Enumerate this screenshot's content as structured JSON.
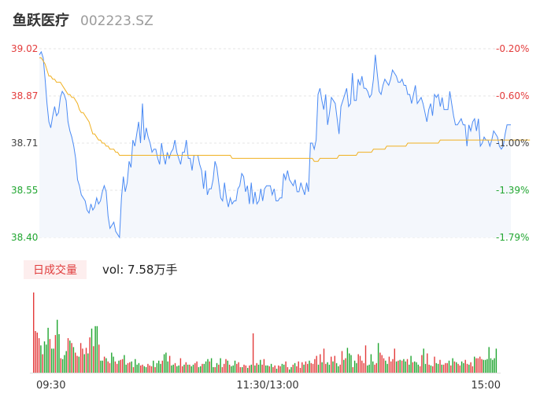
{
  "header": {
    "name": "鱼跃医疗",
    "code": "002223.SZ"
  },
  "volume_header": {
    "badge": "日成交量",
    "text": "vol: 7.58万手"
  },
  "colors": {
    "price_line": "#4a8af4",
    "avg_line": "#f0b020",
    "up": "#e33b3b",
    "down": "#21a631",
    "fill": "#f4f7fc",
    "grid": "#e6e6e6"
  },
  "chart_data": [
    {
      "type": "line",
      "title": "",
      "y_ticks_left": [
        "39.02",
        "38.87",
        "38.71",
        "38.55",
        "38.40"
      ],
      "y_ticks_right": [
        "-0.20%",
        "-0.60%",
        "-1.00%",
        "-1.39%",
        "-1.79%"
      ],
      "ylim": [
        38.4,
        39.02
      ],
      "xlim": [
        0,
        240
      ],
      "x_ticks": [
        "09:30",
        "11:30/13:00",
        "15:00"
      ],
      "series": [
        {
          "key": "price",
          "values": [
            39.0,
            39.01,
            38.99,
            38.92,
            38.84,
            38.78,
            38.76,
            38.8,
            38.83,
            38.8,
            38.81,
            38.86,
            38.88,
            38.87,
            38.85,
            38.78,
            38.75,
            38.73,
            38.7,
            38.66,
            38.59,
            38.57,
            38.54,
            38.53,
            38.52,
            38.49,
            38.48,
            38.51,
            38.49,
            38.5,
            38.53,
            38.51,
            38.52,
            38.55,
            38.57,
            38.55,
            38.47,
            38.43,
            38.44,
            38.45,
            38.42,
            38.41,
            38.4,
            38.53,
            38.6,
            38.55,
            38.58,
            38.65,
            38.63,
            38.72,
            38.7,
            38.74,
            38.78,
            38.71,
            38.84,
            38.72,
            38.76,
            38.73,
            38.71,
            38.68,
            38.69,
            38.69,
            38.66,
            38.64,
            38.71,
            38.67,
            38.64,
            38.68,
            38.66,
            38.68,
            38.69,
            38.72,
            38.68,
            38.66,
            38.64,
            38.68,
            38.68,
            38.72,
            38.66,
            38.66,
            38.62,
            38.67,
            38.67,
            38.67,
            38.64,
            38.62,
            38.56,
            38.62,
            38.54,
            38.56,
            38.56,
            38.59,
            38.65,
            38.63,
            38.58,
            38.53,
            38.52,
            38.58,
            38.53,
            38.5,
            38.53,
            38.51,
            38.52,
            38.52,
            38.56,
            38.57,
            38.61,
            38.6,
            38.55,
            38.57,
            38.51,
            38.58,
            38.51,
            38.55,
            38.51,
            38.52,
            38.56,
            38.52,
            38.56,
            38.57,
            38.57,
            38.57,
            38.54,
            38.56,
            38.52,
            38.52,
            38.53,
            38.53,
            38.61,
            38.59,
            38.62,
            38.59,
            38.58,
            38.57,
            38.59,
            38.55,
            38.55,
            38.58,
            38.56,
            38.54,
            38.58,
            38.55,
            38.71,
            38.71,
            38.69,
            38.72,
            38.87,
            38.89,
            38.85,
            38.82,
            38.87,
            38.77,
            38.81,
            38.86,
            38.85,
            38.84,
            38.79,
            38.74,
            38.83,
            38.85,
            38.87,
            38.89,
            38.83,
            38.84,
            38.94,
            38.85,
            38.85,
            38.92,
            38.9,
            38.93,
            38.89,
            38.89,
            38.88,
            38.86,
            38.87,
            38.92,
            39.0,
            38.94,
            38.88,
            38.87,
            38.9,
            38.92,
            38.91,
            38.9,
            38.92,
            38.95,
            38.94,
            38.93,
            38.91,
            38.91,
            38.92,
            38.9,
            38.9,
            38.87,
            38.87,
            38.84,
            38.87,
            38.9,
            38.84,
            38.85,
            38.86,
            38.84,
            38.81,
            38.78,
            38.82,
            38.84,
            38.8,
            38.87,
            38.86,
            38.87,
            38.83,
            38.86,
            38.82,
            38.82,
            38.82,
            38.88,
            38.84,
            38.8,
            38.77,
            38.77,
            38.78,
            38.79,
            38.77,
            38.77,
            38.7,
            38.77,
            38.75,
            38.78,
            38.79,
            38.75,
            38.79,
            38.7,
            38.71,
            38.73,
            38.72,
            38.72,
            38.7,
            38.72,
            38.75,
            38.74,
            38.73,
            38.7,
            38.69,
            38.7,
            38.74,
            38.77,
            38.77,
            38.77
          ]
        },
        {
          "key": "average",
          "values": [
            38.99,
            38.99,
            38.98,
            38.97,
            38.95,
            38.93,
            38.93,
            38.92,
            38.92,
            38.91,
            38.91,
            38.91,
            38.9,
            38.89,
            38.88,
            38.87,
            38.87,
            38.86,
            38.86,
            38.85,
            38.84,
            38.82,
            38.81,
            38.81,
            38.8,
            38.79,
            38.78,
            38.76,
            38.74,
            38.74,
            38.73,
            38.72,
            38.72,
            38.71,
            38.71,
            38.7,
            38.7,
            38.69,
            38.69,
            38.69,
            38.68,
            38.68,
            38.67,
            38.67,
            38.67,
            38.67,
            38.67,
            38.67,
            38.67,
            38.67,
            38.67,
            38.67,
            38.67,
            38.67,
            38.67,
            38.67,
            38.67,
            38.67,
            38.67,
            38.67,
            38.67,
            38.67,
            38.67,
            38.67,
            38.67,
            38.67,
            38.67,
            38.67,
            38.67,
            38.67,
            38.67,
            38.67,
            38.67,
            38.67,
            38.67,
            38.67,
            38.67,
            38.67,
            38.67,
            38.67,
            38.67,
            38.67,
            38.67,
            38.67,
            38.67,
            38.67,
            38.67,
            38.67,
            38.67,
            38.67,
            38.67,
            38.67,
            38.67,
            38.67,
            38.67,
            38.67,
            38.67,
            38.67,
            38.67,
            38.67,
            38.67,
            38.66,
            38.66,
            38.66,
            38.66,
            38.66,
            38.66,
            38.66,
            38.66,
            38.66,
            38.66,
            38.66,
            38.66,
            38.66,
            38.66,
            38.66,
            38.66,
            38.66,
            38.66,
            38.66,
            38.66,
            38.66,
            38.66,
            38.66,
            38.66,
            38.66,
            38.66,
            38.66,
            38.66,
            38.66,
            38.66,
            38.66,
            38.66,
            38.66,
            38.66,
            38.66,
            38.66,
            38.66,
            38.66,
            38.66,
            38.66,
            38.66,
            38.66,
            38.66,
            38.65,
            38.65,
            38.65,
            38.66,
            38.66,
            38.66,
            38.66,
            38.66,
            38.66,
            38.66,
            38.66,
            38.66,
            38.66,
            38.67,
            38.67,
            38.67,
            38.67,
            38.67,
            38.67,
            38.67,
            38.67,
            38.67,
            38.67,
            38.68,
            38.68,
            38.68,
            38.68,
            38.68,
            38.68,
            38.68,
            38.68,
            38.69,
            38.69,
            38.69,
            38.69,
            38.69,
            38.69,
            38.69,
            38.7,
            38.7,
            38.7,
            38.7,
            38.7,
            38.7,
            38.7,
            38.7,
            38.7,
            38.7,
            38.7,
            38.71,
            38.71,
            38.71,
            38.71,
            38.71,
            38.71,
            38.71,
            38.71,
            38.71,
            38.71,
            38.71,
            38.71,
            38.71,
            38.71,
            38.71,
            38.71,
            38.71,
            38.72,
            38.72,
            38.72,
            38.72,
            38.72,
            38.72,
            38.72,
            38.72,
            38.72,
            38.72,
            38.72,
            38.72,
            38.72,
            38.72,
            38.72,
            38.72,
            38.72,
            38.72,
            38.72,
            38.72,
            38.72,
            38.72,
            38.72,
            38.72,
            38.72,
            38.72,
            38.72,
            38.72,
            38.72,
            38.72,
            38.72,
            38.72,
            38.72,
            38.72,
            38.72,
            38.72,
            38.72,
            38.72,
            38.72,
            38.72,
            38.72,
            38.72,
            38.72,
            38.72,
            38.72,
            38.72,
            38.72,
            38.72
          ]
        }
      ]
    },
    {
      "type": "bar",
      "title": "",
      "xlim": [
        0,
        240
      ],
      "values": [
        100,
        52,
        50,
        43,
        34,
        23,
        39,
        35,
        56,
        42,
        30,
        30,
        47,
        66,
        48,
        18,
        17,
        22,
        27,
        43,
        40,
        37,
        32,
        25,
        21,
        20,
        37,
        30,
        23,
        31,
        24,
        44,
        55,
        33,
        58,
        58,
        35,
        15,
        15,
        20,
        18,
        14,
        12,
        25,
        20,
        14,
        11,
        15,
        16,
        17,
        22,
        10,
        12,
        13,
        14,
        7,
        17,
        10,
        12,
        9,
        10,
        8,
        7,
        11,
        9,
        8,
        15,
        7,
        12,
        15,
        11,
        15,
        23,
        25,
        14,
        21,
        9,
        10,
        12,
        8,
        9,
        18,
        8,
        10,
        13,
        10,
        10,
        8,
        10,
        12,
        14,
        7,
        8,
        11,
        11,
        14,
        17,
        14,
        18,
        7,
        7,
        12,
        10,
        18,
        7,
        11,
        17,
        15,
        10,
        8,
        9,
        15,
        11,
        13,
        7,
        7,
        10,
        9,
        6,
        9,
        10,
        49,
        9,
        12,
        10,
        16,
        10,
        17,
        9,
        9,
        8,
        11,
        7,
        9,
        5,
        9,
        8,
        11,
        10,
        14,
        7,
        4,
        7,
        10,
        12,
        8,
        14,
        6,
        13,
        10,
        14,
        11,
        15,
        12,
        11,
        17,
        21,
        10,
        23,
        13,
        30,
        11,
        13,
        10,
        20,
        14,
        21,
        12,
        8,
        10,
        27,
        16,
        18,
        31,
        24,
        22,
        7,
        15,
        12,
        23,
        21,
        15,
        12,
        34,
        9,
        10,
        23,
        14,
        10,
        12,
        37,
        25,
        22,
        18,
        15,
        11,
        20,
        14,
        17,
        30,
        14,
        15,
        16,
        15,
        17,
        14,
        17,
        10,
        21,
        13,
        14,
        13,
        10,
        8,
        22,
        30,
        11,
        24,
        10,
        9,
        8,
        20,
        12,
        11,
        16,
        10,
        10,
        12,
        12,
        15,
        9,
        18,
        14,
        13,
        11,
        9,
        14,
        12,
        16,
        11,
        10,
        13,
        8,
        20,
        18,
        18,
        20,
        17,
        16,
        16,
        17,
        32,
        18,
        16,
        18,
        30
      ],
      "directions": [
        1,
        1,
        1,
        1,
        0,
        1,
        0,
        0,
        0,
        1,
        0,
        0,
        1,
        0,
        0,
        1,
        0,
        0,
        0,
        1,
        0,
        1,
        0,
        1,
        1,
        0,
        1,
        1,
        0,
        1,
        0,
        1,
        0,
        1,
        0,
        0,
        1,
        0,
        0,
        1,
        0,
        1,
        1,
        0,
        0,
        1,
        1,
        0,
        1,
        1,
        0,
        0,
        1,
        1,
        0,
        1,
        0,
        0,
        0,
        1,
        1,
        0,
        0,
        1,
        1,
        1,
        0,
        1,
        0,
        0,
        0,
        1,
        0,
        0,
        0,
        1,
        0,
        0,
        1,
        0,
        0,
        1,
        1,
        0,
        1,
        0,
        1,
        0,
        0,
        1,
        1,
        0,
        0,
        1,
        0,
        0,
        0,
        1,
        0,
        0,
        1,
        0,
        1,
        0,
        1,
        1,
        1,
        0,
        1,
        0,
        0,
        0,
        1,
        1,
        1,
        0,
        1,
        1,
        0,
        1,
        0,
        1,
        0,
        1,
        0,
        0,
        1,
        1,
        0,
        0,
        1,
        0,
        1,
        1,
        0,
        1,
        1,
        0,
        0,
        1,
        1,
        0,
        0,
        1,
        0,
        1,
        1,
        1,
        1,
        0,
        1,
        1,
        0,
        1,
        1,
        1,
        1,
        0,
        1,
        0,
        1,
        1,
        0,
        0,
        1,
        0,
        1,
        0,
        0,
        1,
        1,
        0,
        1,
        0,
        0,
        0,
        1,
        0,
        0,
        1,
        1,
        1,
        1,
        1,
        0,
        0,
        0,
        0,
        1,
        1,
        0,
        1,
        1,
        1,
        0,
        0,
        1,
        1,
        1,
        1,
        0,
        1,
        0,
        1,
        0,
        0,
        1,
        0,
        0,
        1,
        0,
        0,
        0,
        1,
        1,
        0,
        0,
        1,
        1,
        0,
        1,
        1,
        0,
        0,
        1,
        0,
        1,
        1,
        1,
        0,
        1,
        0,
        1,
        0,
        1,
        1,
        0,
        0,
        1,
        1,
        0,
        1,
        1,
        0,
        1,
        1,
        1,
        1,
        0,
        0
      ]
    }
  ]
}
